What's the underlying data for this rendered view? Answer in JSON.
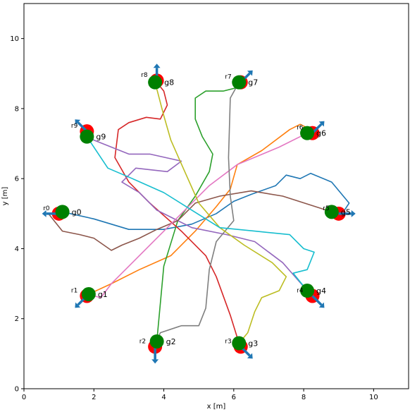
{
  "chart_data": {
    "type": "line",
    "title": "",
    "xlabel": "x [m]",
    "ylabel": "y [m]",
    "xlim": [
      0,
      11
    ],
    "ylim": [
      0,
      11
    ],
    "xticks": [
      "0",
      "2",
      "4",
      "6",
      "8",
      "10"
    ],
    "yticks": [
      "0",
      "2",
      "4",
      "6",
      "8",
      "10"
    ],
    "grid": false,
    "legend": "none",
    "series": [
      {
        "robot": "r0",
        "goal": "g0",
        "color": "#1f77b4",
        "start": [
          1.0,
          5.0
        ],
        "goal_pos": [
          1.1,
          5.05
        ],
        "heading": "left",
        "path": [
          [
            1.1,
            5.05
          ],
          [
            2.0,
            4.85
          ],
          [
            3.0,
            4.55
          ],
          [
            4.0,
            4.55
          ],
          [
            4.8,
            4.7
          ],
          [
            5.5,
            5.0
          ],
          [
            6.0,
            5.35
          ],
          [
            6.5,
            5.55
          ],
          [
            7.2,
            5.8
          ],
          [
            7.5,
            6.1
          ],
          [
            7.9,
            6.0
          ],
          [
            8.2,
            6.15
          ],
          [
            8.8,
            5.9
          ],
          [
            9.3,
            5.3
          ],
          [
            9.1,
            5.0
          ],
          [
            8.8,
            5.05
          ]
        ]
      },
      {
        "robot": "r1",
        "goal": "g1",
        "color": "#ff7f0e",
        "start": [
          1.8,
          2.65
        ],
        "goal_pos": [
          1.85,
          2.7
        ],
        "heading": "down-left",
        "path": [
          [
            1.85,
            2.7
          ],
          [
            2.5,
            3.0
          ],
          [
            3.3,
            3.4
          ],
          [
            4.2,
            3.8
          ],
          [
            4.9,
            4.5
          ],
          [
            5.5,
            5.2
          ],
          [
            5.9,
            5.7
          ],
          [
            6.1,
            6.4
          ],
          [
            6.8,
            6.8
          ],
          [
            7.6,
            7.4
          ],
          [
            7.9,
            7.55
          ],
          [
            8.2,
            7.4
          ]
        ]
      },
      {
        "robot": "r2",
        "goal": "g2",
        "color": "#2ca02c",
        "start": [
          3.75,
          1.2
        ],
        "goal_pos": [
          3.8,
          1.35
        ],
        "heading": "down",
        "path": [
          [
            3.8,
            1.35
          ],
          [
            4.0,
            3.5
          ],
          [
            4.4,
            4.8
          ],
          [
            4.9,
            5.5
          ],
          [
            5.3,
            6.2
          ],
          [
            5.4,
            6.7
          ],
          [
            5.1,
            7.2
          ],
          [
            4.9,
            7.7
          ],
          [
            4.9,
            8.3
          ],
          [
            5.2,
            8.5
          ],
          [
            5.7,
            8.5
          ],
          [
            6.1,
            8.6
          ],
          [
            6.2,
            8.7
          ]
        ]
      },
      {
        "robot": "r3",
        "goal": "g3",
        "color": "#d62728",
        "start": [
          6.2,
          1.2
        ],
        "goal_pos": [
          6.15,
          1.3
        ],
        "heading": "down-right",
        "path": [
          [
            6.15,
            1.3
          ],
          [
            5.9,
            2.1
          ],
          [
            5.5,
            3.2
          ],
          [
            5.2,
            3.8
          ],
          [
            4.5,
            4.5
          ],
          [
            3.6,
            5.3
          ],
          [
            3.0,
            5.9
          ],
          [
            2.6,
            6.6
          ],
          [
            2.7,
            7.4
          ],
          [
            3.0,
            7.6
          ],
          [
            3.5,
            7.75
          ],
          [
            3.9,
            7.7
          ],
          [
            4.1,
            8.1
          ],
          [
            4.0,
            8.5
          ],
          [
            3.8,
            8.75
          ]
        ]
      },
      {
        "robot": "r4",
        "goal": "g4",
        "color": "#9467bd",
        "start": [
          8.25,
          2.65
        ],
        "goal_pos": [
          8.1,
          2.8
        ],
        "heading": "down-right",
        "path": [
          [
            8.1,
            2.8
          ],
          [
            7.4,
            3.6
          ],
          [
            6.6,
            4.2
          ],
          [
            5.8,
            4.4
          ],
          [
            4.8,
            4.6
          ],
          [
            3.8,
            5.1
          ],
          [
            3.3,
            5.6
          ],
          [
            2.8,
            5.9
          ],
          [
            3.2,
            6.3
          ],
          [
            4.1,
            6.2
          ],
          [
            4.5,
            6.5
          ],
          [
            3.6,
            6.7
          ],
          [
            3.0,
            6.7
          ],
          [
            2.5,
            6.9
          ],
          [
            2.0,
            7.1
          ],
          [
            1.8,
            7.2
          ]
        ]
      },
      {
        "robot": "r5",
        "goal": "g5",
        "color": "#8c564b",
        "start": [
          9.0,
          5.0
        ],
        "goal_pos": [
          8.8,
          5.05
        ],
        "heading": "right",
        "path": [
          [
            8.8,
            5.05
          ],
          [
            7.4,
            5.5
          ],
          [
            6.5,
            5.65
          ],
          [
            5.6,
            5.5
          ],
          [
            4.9,
            5.3
          ],
          [
            4.4,
            4.8
          ],
          [
            3.8,
            4.55
          ],
          [
            3.3,
            4.3
          ],
          [
            2.8,
            4.1
          ],
          [
            2.5,
            3.95
          ],
          [
            2.0,
            4.3
          ],
          [
            1.6,
            4.4
          ],
          [
            1.1,
            4.5
          ],
          [
            0.7,
            5.0
          ],
          [
            1.1,
            5.05
          ]
        ]
      },
      {
        "robot": "r6",
        "goal": "g6",
        "color": "#e377c2",
        "start": [
          8.25,
          7.3
        ],
        "goal_pos": [
          8.1,
          7.3
        ],
        "heading": "up-right",
        "path": [
          [
            8.1,
            7.3
          ],
          [
            7.3,
            6.9
          ],
          [
            6.1,
            6.4
          ],
          [
            5.3,
            5.8
          ],
          [
            4.5,
            5.0
          ],
          [
            3.8,
            4.3
          ],
          [
            3.1,
            3.6
          ],
          [
            2.5,
            3.0
          ],
          [
            2.2,
            2.6
          ],
          [
            1.8,
            2.7
          ]
        ]
      },
      {
        "robot": "r7",
        "goal": "g7",
        "color": "#7f7f7f",
        "start": [
          6.2,
          8.75
        ],
        "goal_pos": [
          6.15,
          8.75
        ],
        "heading": "up-right",
        "path": [
          [
            6.15,
            8.75
          ],
          [
            5.9,
            8.3
          ],
          [
            5.85,
            6.6
          ],
          [
            5.9,
            5.5
          ],
          [
            6.0,
            4.8
          ],
          [
            5.5,
            4.2
          ],
          [
            5.3,
            3.4
          ],
          [
            5.2,
            2.3
          ],
          [
            5.0,
            1.8
          ],
          [
            4.5,
            1.8
          ],
          [
            3.9,
            1.6
          ],
          [
            3.8,
            1.35
          ]
        ]
      },
      {
        "robot": "r8",
        "goal": "g8",
        "color": "#bcbd22",
        "start": [
          3.8,
          8.8
        ],
        "goal_pos": [
          3.75,
          8.75
        ],
        "heading": "up",
        "path": [
          [
            3.75,
            8.75
          ],
          [
            4.0,
            7.8
          ],
          [
            4.2,
            7.1
          ],
          [
            4.6,
            6.2
          ],
          [
            5.0,
            5.3
          ],
          [
            5.6,
            4.6
          ],
          [
            6.3,
            4.1
          ],
          [
            7.1,
            3.6
          ],
          [
            7.5,
            3.2
          ],
          [
            7.3,
            2.8
          ],
          [
            6.8,
            2.6
          ],
          [
            6.6,
            2.2
          ],
          [
            6.4,
            1.6
          ],
          [
            6.15,
            1.3
          ]
        ]
      },
      {
        "robot": "r9",
        "goal": "g9",
        "color": "#17becf",
        "start": [
          1.8,
          7.35
        ],
        "goal_pos": [
          1.8,
          7.2
        ],
        "heading": "up-left",
        "path": [
          [
            1.8,
            7.2
          ],
          [
            2.4,
            6.3
          ],
          [
            3.1,
            6.0
          ],
          [
            4.0,
            5.6
          ],
          [
            4.8,
            5.1
          ],
          [
            5.6,
            4.6
          ],
          [
            6.6,
            4.5
          ],
          [
            7.6,
            4.4
          ],
          [
            8.0,
            4.0
          ],
          [
            8.3,
            3.9
          ],
          [
            8.1,
            3.4
          ],
          [
            7.7,
            3.3
          ],
          [
            8.1,
            2.8
          ]
        ]
      }
    ]
  }
}
